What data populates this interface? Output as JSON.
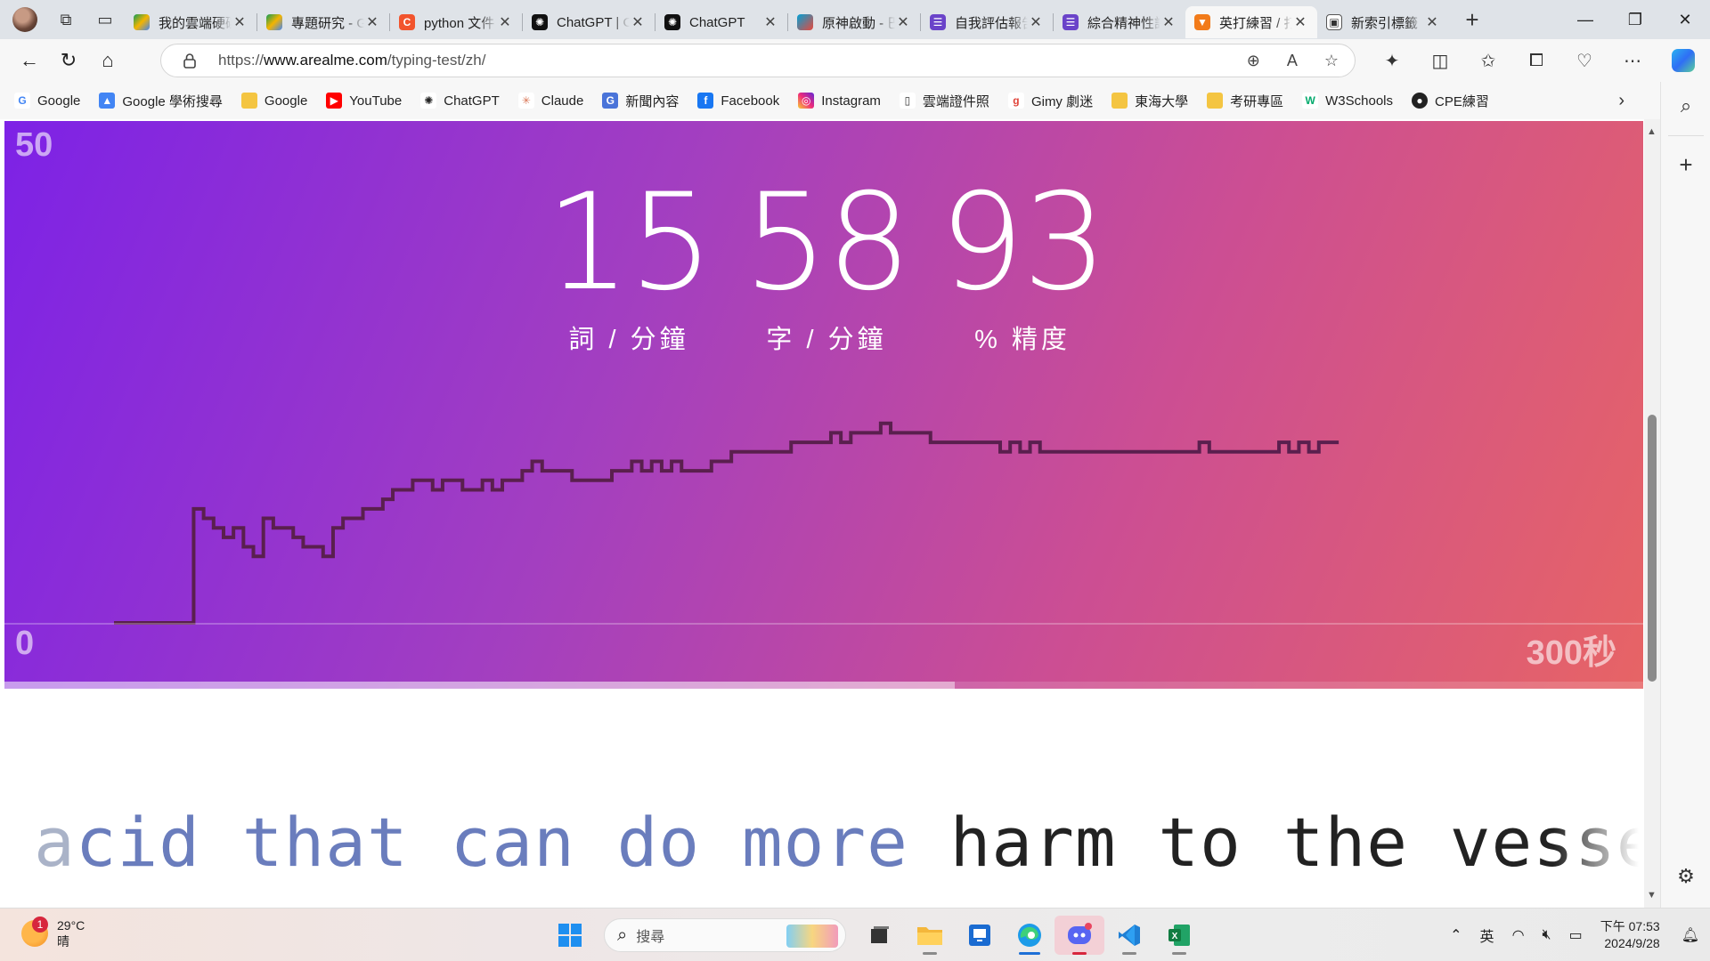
{
  "browser": {
    "tabs": [
      {
        "label": "我的雲端硬碟",
        "icon": "google-drive-icon",
        "active": false
      },
      {
        "label": "專題研究 - Google 雲端硬碟",
        "icon": "google-drive-icon",
        "active": false
      },
      {
        "label": "python 文件",
        "icon": "c-logo-icon",
        "active": false
      },
      {
        "label": "ChatGPT | OpenAI",
        "icon": "chatgpt-icon",
        "active": false
      },
      {
        "label": "ChatGPT",
        "icon": "chatgpt-icon",
        "active": false
      },
      {
        "label": "原神啟動 - 巴哈姆特",
        "icon": "bahamut-icon",
        "active": false
      },
      {
        "label": "自我評估報告",
        "icon": "forms-icon",
        "active": false
      },
      {
        "label": "綜合精神性評估",
        "icon": "forms-icon",
        "active": false
      },
      {
        "label": "英打練習 / 打字速度測試",
        "icon": "fox-icon",
        "active": true
      },
      {
        "label": "新索引標籤",
        "icon": "newtab-icon",
        "active": false
      }
    ],
    "url_prefix": "https://",
    "url_domain": "www.arealme.com",
    "url_path": "/typing-test/zh/"
  },
  "bookmarks": [
    {
      "label": "Google",
      "icon": "google-icon"
    },
    {
      "label": "Google 學術搜尋",
      "icon": "scholar-icon"
    },
    {
      "label": "Google",
      "icon": "folder-icon"
    },
    {
      "label": "YouTube",
      "icon": "youtube-icon"
    },
    {
      "label": "ChatGPT",
      "icon": "chatgpt-icon"
    },
    {
      "label": "Claude",
      "icon": "claude-icon"
    },
    {
      "label": "新聞內容",
      "icon": "news-icon"
    },
    {
      "label": "Facebook",
      "icon": "facebook-icon"
    },
    {
      "label": "Instagram",
      "icon": "instagram-icon"
    },
    {
      "label": "雲端證件照",
      "icon": "document-icon"
    },
    {
      "label": "Gimy 劇迷",
      "icon": "gimy-icon"
    },
    {
      "label": "東海大學",
      "icon": "folder-icon"
    },
    {
      "label": "考研專區",
      "icon": "folder-icon"
    },
    {
      "label": "W3Schools",
      "icon": "w3schools-icon"
    },
    {
      "label": "CPE練習",
      "icon": "github-icon"
    }
  ],
  "stats": {
    "wpm": "15",
    "wpm_label": "詞 / 分鐘",
    "cpm": "58",
    "cpm_label": "字 / 分鐘",
    "accuracy": "93",
    "accuracy_label": "% 精度"
  },
  "chart_data": {
    "type": "line",
    "y_max_label": "50",
    "y_min_label": "0",
    "x_max_label": "300秒",
    "ylim": [
      0,
      50
    ],
    "xlim": [
      0,
      300
    ],
    "progress_fraction": 0.58,
    "x": [
      0,
      3,
      6,
      8,
      10,
      12,
      14,
      16,
      18,
      20,
      22,
      24,
      26,
      28,
      30,
      32,
      34,
      36,
      38,
      40,
      42,
      44,
      46,
      48,
      50,
      52,
      54,
      56,
      58,
      60,
      62,
      64,
      66,
      68,
      70,
      72,
      74,
      76,
      78,
      80,
      82,
      84,
      86,
      88,
      90,
      92,
      94,
      96,
      98,
      100,
      102,
      104,
      106,
      108,
      110,
      112,
      114,
      116,
      118,
      120,
      122,
      124,
      126,
      128,
      130,
      132,
      134,
      136,
      138,
      140,
      142,
      144,
      146,
      148,
      150,
      152,
      154,
      156,
      158,
      160,
      162,
      164,
      166,
      168,
      170,
      172,
      174,
      176,
      178,
      180,
      182,
      184,
      186,
      188,
      190,
      192,
      194,
      196,
      198,
      200,
      202,
      204,
      206,
      208,
      210,
      212,
      214,
      216,
      218,
      220,
      222,
      224,
      226,
      228,
      230,
      232,
      234,
      236,
      238,
      240,
      242,
      244,
      246
    ],
    "y": [
      0,
      0,
      0,
      0,
      0,
      0,
      0,
      12,
      11,
      10,
      9,
      10,
      8,
      7,
      11,
      10,
      10,
      9,
      8,
      8,
      7,
      10,
      11,
      11,
      12,
      12,
      13,
      14,
      14,
      15,
      15,
      14,
      15,
      15,
      14,
      14,
      15,
      14,
      15,
      15,
      16,
      17,
      16,
      16,
      16,
      15,
      15,
      15,
      15,
      16,
      16,
      17,
      16,
      17,
      16,
      17,
      16,
      16,
      16,
      17,
      17,
      18,
      18,
      18,
      18,
      18,
      18,
      19,
      19,
      19,
      19,
      20,
      19,
      20,
      20,
      20,
      21,
      20,
      20,
      20,
      20,
      19,
      19,
      19,
      19,
      19,
      19,
      19,
      18,
      19,
      18,
      19,
      18,
      18,
      18,
      18,
      18,
      18,
      18,
      18,
      18,
      18,
      18,
      18,
      18,
      18,
      18,
      18,
      19,
      18,
      18,
      18,
      18,
      18,
      18,
      18,
      19,
      18,
      19,
      18,
      19,
      19,
      19
    ]
  },
  "typing": {
    "typed_first": "a",
    "typed_rest": "cid that can do more",
    "pending": " harm to the vessel in w"
  },
  "taskbar": {
    "weather_temp": "29°C",
    "weather_desc": "晴",
    "weather_badge": "1",
    "search_placeholder": "搜尋",
    "ime": "英",
    "time": "下午 07:53",
    "date": "2024/9/28"
  },
  "colors": {
    "hero_start": "#7d22e6",
    "hero_end": "#e76465",
    "chart_line": "#5a1f4e",
    "typed_text": "#6a7dbd"
  }
}
